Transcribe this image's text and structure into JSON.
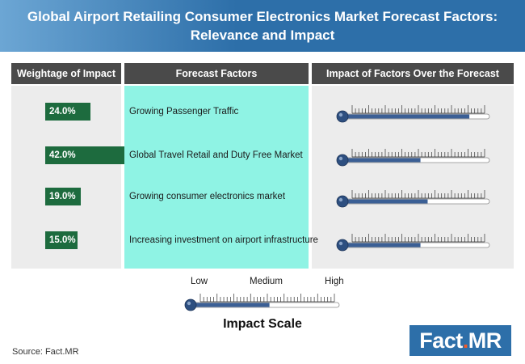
{
  "title": {
    "line1": "Global Airport Retailing Consumer Electronics Market Forecast Factors:",
    "line2": "Relevance and Impact"
  },
  "headers": {
    "weightage": "Weightage of Impact",
    "factors": "Forecast Factors",
    "impact": "Impact of Factors Over the Forecast Period"
  },
  "chart_data": {
    "type": "bar",
    "categories": [
      "Growing Passenger Traffic",
      "Global Travel Retail and Duty Free Market",
      "Growing consumer electronics market",
      "Increasing investment on airport infrastructure"
    ],
    "weightage_labels": [
      "24.0%",
      "42.0%",
      "19.0%",
      "15.0%"
    ],
    "values": [
      24.0,
      42.0,
      19.0,
      15.0
    ],
    "impact_levels": [
      0.86,
      0.52,
      0.57,
      0.52
    ],
    "impact_scale_level": 0.52,
    "colors": {
      "weight_bar": "#1d6b3e",
      "factor_panel": "#8ff3e4",
      "thermo_fill": "#3b5f95",
      "thermo_bulb": "#2d4f80"
    }
  },
  "scale": {
    "low": "Low",
    "medium": "Medium",
    "high": "High",
    "title": "Impact Scale"
  },
  "source": "Source: Fact.MR",
  "logo": {
    "text_a": "Fact",
    "text_dot": ".",
    "text_b": "MR"
  }
}
